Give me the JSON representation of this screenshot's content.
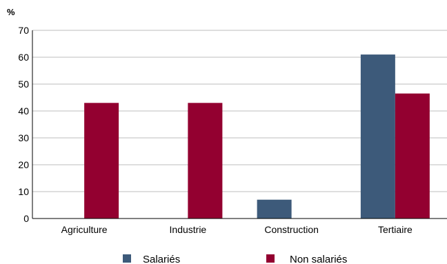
{
  "chart_data": {
    "type": "bar",
    "unit_label": "%",
    "categories": [
      "Agriculture",
      "Industrie",
      "Construction",
      "Tertiaire"
    ],
    "series": [
      {
        "name": "Salariés",
        "values": [
          0,
          0,
          7,
          61
        ],
        "color": "#3d5a7a"
      },
      {
        "name": "Non salariés",
        "values": [
          43,
          43,
          0,
          46.5
        ],
        "color": "#930030"
      }
    ],
    "ylim": [
      0,
      70
    ],
    "yticks": [
      0,
      10,
      20,
      30,
      40,
      50,
      60,
      70
    ],
    "grid": true,
    "legend_position": "bottom"
  }
}
